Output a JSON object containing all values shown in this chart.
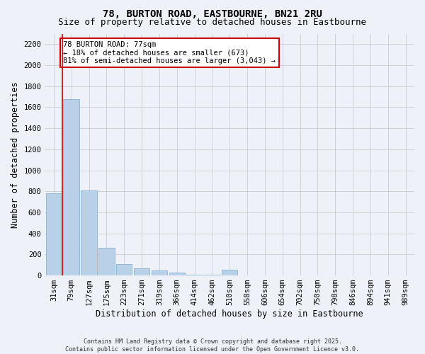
{
  "title_line1": "78, BURTON ROAD, EASTBOURNE, BN21 2RU",
  "title_line2": "Size of property relative to detached houses in Eastbourne",
  "xlabel": "Distribution of detached houses by size in Eastbourne",
  "ylabel": "Number of detached properties",
  "categories": [
    "31sqm",
    "79sqm",
    "127sqm",
    "175sqm",
    "223sqm",
    "271sqm",
    "319sqm",
    "366sqm",
    "414sqm",
    "462sqm",
    "510sqm",
    "558sqm",
    "606sqm",
    "654sqm",
    "702sqm",
    "750sqm",
    "798sqm",
    "846sqm",
    "894sqm",
    "941sqm",
    "989sqm"
  ],
  "values": [
    780,
    1675,
    810,
    265,
    110,
    65,
    50,
    30,
    10,
    5,
    55,
    0,
    0,
    0,
    0,
    0,
    0,
    0,
    0,
    0,
    0
  ],
  "bar_color": "#b8d0e8",
  "bar_edge_color": "#8ab4d4",
  "annotation_box_text": "78 BURTON ROAD: 77sqm\n← 18% of detached houses are smaller (673)\n81% of semi-detached houses are larger (3,043) →",
  "annotation_box_color": "#ffffff",
  "annotation_box_edge_color": "#cc0000",
  "vline_color": "#cc0000",
  "vline_x": 0.5,
  "ylim": [
    0,
    2300
  ],
  "yticks": [
    0,
    200,
    400,
    600,
    800,
    1000,
    1200,
    1400,
    1600,
    1800,
    2000,
    2200
  ],
  "grid_color": "#cccccc",
  "bg_color": "#eef2f8",
  "footer_text": "Contains HM Land Registry data © Crown copyright and database right 2025.\nContains public sector information licensed under the Open Government Licence v3.0.",
  "title_fontsize": 10,
  "subtitle_fontsize": 9,
  "axis_label_fontsize": 8.5,
  "tick_fontsize": 7.5,
  "annot_fontsize": 7.5,
  "footer_fontsize": 6
}
